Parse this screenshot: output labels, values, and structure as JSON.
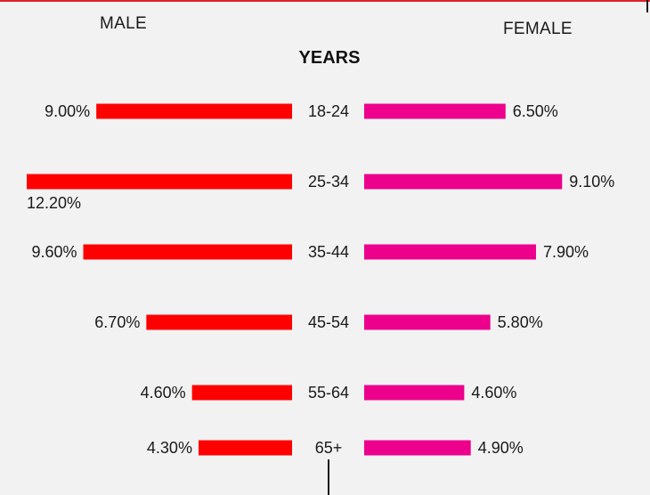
{
  "chart_data": {
    "type": "bar",
    "orientation": "horizontal-diverging",
    "title": "YEARS",
    "left_label": "MALE",
    "right_label": "FEMALE",
    "categories": [
      "18-24",
      "25-34",
      "35-44",
      "45-54",
      "55-64",
      "65+"
    ],
    "series": [
      {
        "name": "MALE",
        "side": "left",
        "values": [
          9.0,
          12.2,
          9.6,
          6.7,
          4.6,
          4.3
        ],
        "labels": [
          "9.00%",
          "12.20%",
          "9.60%",
          "6.70%",
          "4.60%",
          "4.30%"
        ],
        "color": "#ff0000"
      },
      {
        "name": "FEMALE",
        "side": "right",
        "values": [
          6.5,
          9.1,
          7.9,
          5.8,
          4.6,
          4.9
        ],
        "labels": [
          "6.50%",
          "9.10%",
          "7.90%",
          "5.80%",
          "4.60%",
          "4.90%"
        ],
        "color": "#ec008c"
      }
    ],
    "unit": "%"
  }
}
